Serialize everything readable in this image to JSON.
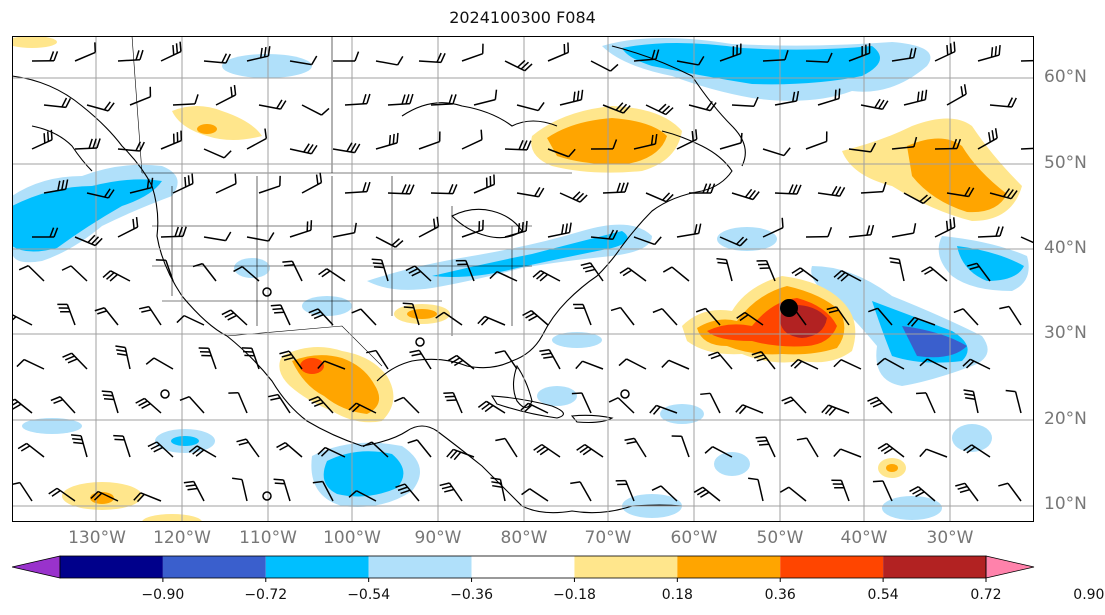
{
  "title": "2024100300 F084",
  "lat_labels": [
    "60°N",
    "50°N",
    "40°N",
    "30°N",
    "20°N",
    "10°N"
  ],
  "lon_labels": [
    "130°W",
    "120°W",
    "110°W",
    "100°W",
    "90°W",
    "80°W",
    "70°W",
    "60°W",
    "50°W",
    "40°W",
    "30°W"
  ],
  "colorbar": {
    "ticks": [
      "−0.90",
      "−0.72",
      "−0.54",
      "−0.36",
      "−0.18",
      "0.18",
      "0.36",
      "0.54",
      "0.72",
      "0.90"
    ],
    "colors": [
      "#9932cc",
      "#00008b",
      "#3a5fcd",
      "#00bfff",
      "#b0e0fa",
      "#ffffff",
      "#ffe68c",
      "#ffa500",
      "#ff4500",
      "#b22222",
      "#ff82ab"
    ],
    "extend": "both"
  },
  "map_style": {
    "gridlines": true,
    "coastlines": true,
    "state_borders": true,
    "wind_barbs": true,
    "storm_marker_color": "#000000"
  }
}
